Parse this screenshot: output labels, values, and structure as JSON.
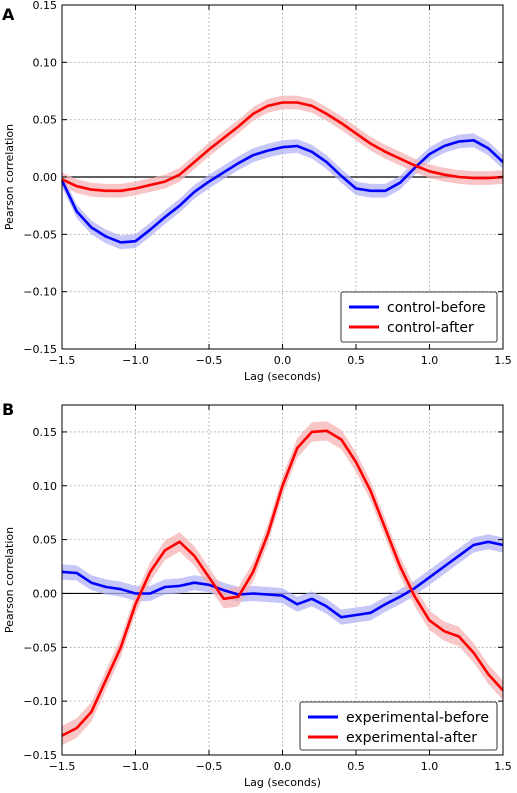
{
  "chart_data": [
    {
      "panel": "A",
      "type": "line",
      "xlabel": "Lag (seconds)",
      "ylabel": "Pearson correlation",
      "xlim": [
        -1.5,
        1.5
      ],
      "ylim": [
        -0.15,
        0.15
      ],
      "xticks": [
        "−1.5",
        "−1.0",
        "−0.5",
        "0.0",
        "0.5",
        "1.0",
        "1.5"
      ],
      "yticks": [
        "−0.15",
        "−0.10",
        "−0.05",
        "0.00",
        "0.05",
        "0.10",
        "0.15"
      ],
      "grid": true,
      "legend_position": "lower-right",
      "zero_line": true,
      "series": [
        {
          "name": "control-before",
          "color": "#0000ff",
          "band_color": "#b3b3f5",
          "band": 0.006,
          "x": [
            -1.5,
            -1.4,
            -1.3,
            -1.2,
            -1.1,
            -1.0,
            -0.9,
            -0.8,
            -0.7,
            -0.6,
            -0.5,
            -0.4,
            -0.3,
            -0.2,
            -0.1,
            0.0,
            0.1,
            0.2,
            0.3,
            0.4,
            0.5,
            0.6,
            0.7,
            0.8,
            0.9,
            1.0,
            1.1,
            1.2,
            1.3,
            1.4,
            1.5
          ],
          "y": [
            -0.003,
            -0.03,
            -0.044,
            -0.052,
            -0.057,
            -0.056,
            -0.046,
            -0.035,
            -0.025,
            -0.013,
            -0.004,
            0.004,
            0.012,
            0.019,
            0.023,
            0.026,
            0.027,
            0.022,
            0.013,
            0.001,
            -0.01,
            -0.012,
            -0.012,
            -0.005,
            0.008,
            0.02,
            0.027,
            0.031,
            0.032,
            0.025,
            0.013
          ]
        },
        {
          "name": "control-after",
          "color": "#ff0000",
          "band_color": "#f5b3b3",
          "band": 0.006,
          "x": [
            -1.5,
            -1.4,
            -1.3,
            -1.2,
            -1.1,
            -1.0,
            -0.9,
            -0.8,
            -0.7,
            -0.6,
            -0.5,
            -0.4,
            -0.3,
            -0.2,
            -0.1,
            0.0,
            0.1,
            0.2,
            0.3,
            0.4,
            0.5,
            0.6,
            0.7,
            0.8,
            0.9,
            1.0,
            1.1,
            1.2,
            1.3,
            1.4,
            1.5
          ],
          "y": [
            -0.002,
            -0.008,
            -0.011,
            -0.012,
            -0.012,
            -0.01,
            -0.007,
            -0.004,
            0.002,
            0.013,
            0.024,
            0.034,
            0.044,
            0.055,
            0.062,
            0.065,
            0.065,
            0.062,
            0.055,
            0.047,
            0.038,
            0.029,
            0.022,
            0.016,
            0.01,
            0.005,
            0.002,
            0.0,
            -0.001,
            -0.001,
            0.0
          ]
        }
      ]
    },
    {
      "panel": "B",
      "type": "line",
      "xlabel": "Lag (seconds)",
      "ylabel": "Pearson correlation",
      "xlim": [
        -1.5,
        1.5
      ],
      "ylim": [
        -0.15,
        0.175
      ],
      "xticks": [
        "−1.5",
        "−1.0",
        "−0.5",
        "0.0",
        "0.5",
        "1.0",
        "1.5"
      ],
      "yticks": [
        "−0.15",
        "−0.10",
        "−0.05",
        "0.00",
        "0.05",
        "0.10",
        "0.15"
      ],
      "grid": true,
      "legend_position": "lower-right",
      "zero_line": true,
      "series": [
        {
          "name": "experimental-before",
          "color": "#0000ff",
          "band_color": "#b3b3f5",
          "band": 0.007,
          "x": [
            -1.5,
            -1.4,
            -1.3,
            -1.2,
            -1.1,
            -1.0,
            -0.9,
            -0.8,
            -0.7,
            -0.6,
            -0.5,
            -0.4,
            -0.3,
            -0.2,
            -0.1,
            0.0,
            0.1,
            0.2,
            0.3,
            0.4,
            0.5,
            0.6,
            0.7,
            0.8,
            0.9,
            1.0,
            1.1,
            1.2,
            1.3,
            1.4,
            1.5
          ],
          "y": [
            0.02,
            0.019,
            0.01,
            0.006,
            0.004,
            0.0,
            0.0,
            0.006,
            0.007,
            0.01,
            0.008,
            0.003,
            -0.001,
            0.0,
            -0.001,
            -0.002,
            -0.01,
            -0.005,
            -0.012,
            -0.022,
            -0.02,
            -0.018,
            -0.01,
            -0.003,
            0.005,
            0.015,
            0.025,
            0.035,
            0.045,
            0.048,
            0.045
          ]
        },
        {
          "name": "experimental-after",
          "color": "#ff0000",
          "band_color": "#f5b3b3",
          "band": 0.009,
          "x": [
            -1.5,
            -1.4,
            -1.3,
            -1.2,
            -1.1,
            -1.0,
            -0.9,
            -0.8,
            -0.7,
            -0.6,
            -0.5,
            -0.4,
            -0.3,
            -0.2,
            -0.1,
            0.0,
            0.1,
            0.2,
            0.3,
            0.4,
            0.5,
            0.6,
            0.7,
            0.8,
            0.9,
            1.0,
            1.1,
            1.2,
            1.3,
            1.4,
            1.5
          ],
          "y": [
            -0.132,
            -0.125,
            -0.11,
            -0.08,
            -0.05,
            -0.01,
            0.02,
            0.04,
            0.048,
            0.035,
            0.015,
            -0.005,
            -0.003,
            0.02,
            0.055,
            0.1,
            0.135,
            0.15,
            0.151,
            0.143,
            0.122,
            0.095,
            0.06,
            0.025,
            -0.003,
            -0.025,
            -0.035,
            -0.04,
            -0.055,
            -0.075,
            -0.09
          ]
        }
      ]
    }
  ]
}
